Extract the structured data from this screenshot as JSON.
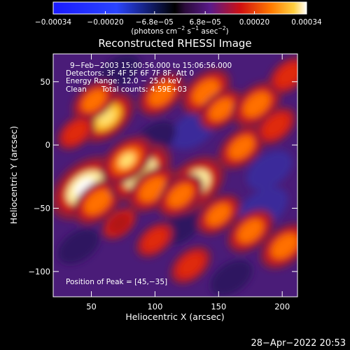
{
  "chart_data": {
    "type": "heatmap",
    "title": "Reconstructed RHESSI Image",
    "xlabel": "Heliocentric X (arcsec)",
    "ylabel": "Heliocentric Y (arcsec)",
    "xlim": [
      20,
      212
    ],
    "ylim": [
      -120,
      72
    ],
    "x_ticks": [
      50,
      100,
      150,
      200
    ],
    "y_ticks": [
      50,
      0,
      -50,
      -100
    ],
    "colorbar": {
      "range": [
        -0.00034,
        0.00034
      ],
      "tick_values": [
        -0.00034,
        -0.0002,
        -6.8e-05,
        6.8e-05,
        0.0002,
        0.00034
      ],
      "tick_labels": [
        "−0.00034",
        "−0.00020",
        "−6.8e−05",
        "6.8e−05",
        "0.00020",
        "0.00034"
      ],
      "colors": {
        "min": "#1a1aff",
        "low": "#3355ff",
        "neutral": "#000000",
        "mid_low": "#5a1a8a",
        "mid": "#d01010",
        "high": "#ffb000",
        "max": "#ffffff"
      }
    },
    "annotations": {
      "time_range": "9−Feb−2003 15:00:56.000 to 15:06:56.000",
      "detectors": "Detectors: 3F 4F 5F 6F 7F 8F, Att 0",
      "energy_range": "Energy Range: 12.0 − 25.0 keV",
      "clean": "Clean",
      "total_counts": "Total counts: 4.59E+03",
      "peak": "Position of Peak = [45,−35]"
    },
    "peak": {
      "x": 45,
      "y": -35
    },
    "sources": [
      {
        "x": 45,
        "y": -34,
        "value": 0.00034
      },
      {
        "x": 55,
        "y": -45,
        "value": 0.0002
      },
      {
        "x": 88,
        "y": -22,
        "value": 0.0003
      },
      {
        "x": 78,
        "y": -12,
        "value": 0.00022
      },
      {
        "x": 98,
        "y": -35,
        "value": 0.0002
      },
      {
        "x": 130,
        "y": -32,
        "value": 0.0003
      },
      {
        "x": 120,
        "y": -40,
        "value": 0.00018
      },
      {
        "x": 62,
        "y": 22,
        "value": 0.00024
      },
      {
        "x": 52,
        "y": 35,
        "value": 0.00016
      },
      {
        "x": 105,
        "y": 40,
        "value": 0.00018
      },
      {
        "x": 140,
        "y": 42,
        "value": 0.0002
      },
      {
        "x": 152,
        "y": 28,
        "value": 0.00016
      },
      {
        "x": 168,
        "y": -2,
        "value": 0.00018
      },
      {
        "x": 180,
        "y": 32,
        "value": 0.0002
      },
      {
        "x": 195,
        "y": 15,
        "value": 0.00014
      },
      {
        "x": 150,
        "y": -55,
        "value": 0.00016
      },
      {
        "x": 175,
        "y": -68,
        "value": 0.00018
      },
      {
        "x": 202,
        "y": -80,
        "value": 0.0002
      },
      {
        "x": 128,
        "y": -95,
        "value": 0.00014
      },
      {
        "x": 100,
        "y": -75,
        "value": 0.00012
      },
      {
        "x": 38,
        "y": 10,
        "value": 0.00012
      },
      {
        "x": 205,
        "y": 55,
        "value": 0.00014
      },
      {
        "x": 72,
        "y": -62,
        "value": 0.0001
      }
    ],
    "negative_regions": [
      {
        "x": 130,
        "y": 12,
        "value": -0.00012
      },
      {
        "x": 100,
        "y": 5,
        "value": -0.0001
      },
      {
        "x": 185,
        "y": -50,
        "value": -0.00014
      },
      {
        "x": 160,
        "y": -105,
        "value": -0.0001
      },
      {
        "x": 40,
        "y": -80,
        "value": -0.0001
      },
      {
        "x": 72,
        "y": 58,
        "value": -0.0001
      },
      {
        "x": 190,
        "y": -20,
        "value": -0.00012
      },
      {
        "x": 120,
        "y": -65,
        "value": -0.0001
      }
    ]
  },
  "footer": {
    "timestamp": "28−Apr−2022 20:53"
  }
}
